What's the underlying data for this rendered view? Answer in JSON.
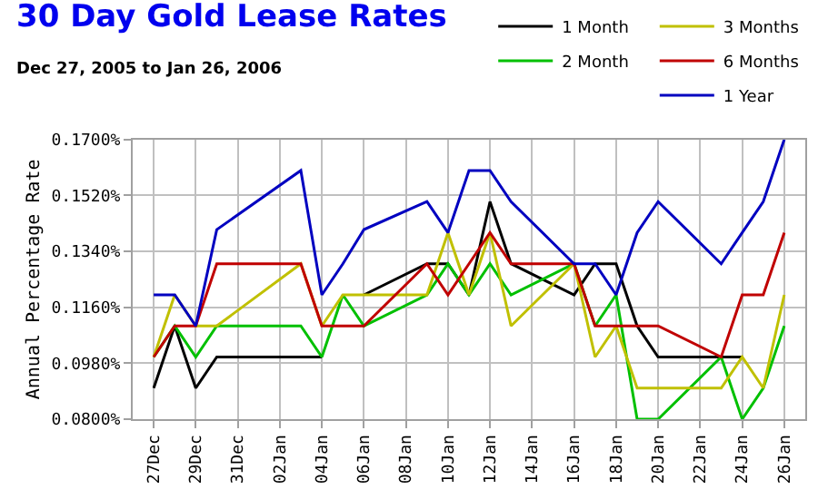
{
  "chart_data": {
    "type": "line",
    "title": "30 Day Gold Lease Rates",
    "subtitle": "Dec 27, 2005 to Jan 26, 2006",
    "ylabel": "Annual Percentage Rate",
    "x": [
      "2005-12-27",
      "2005-12-28",
      "2005-12-29",
      "2005-12-30",
      "2006-01-03",
      "2006-01-04",
      "2006-01-05",
      "2006-01-06",
      "2006-01-09",
      "2006-01-10",
      "2006-01-11",
      "2006-01-12",
      "2006-01-13",
      "2006-01-16",
      "2006-01-17",
      "2006-01-18",
      "2006-01-19",
      "2006-01-20",
      "2006-01-23",
      "2006-01-24",
      "2006-01-25",
      "2006-01-26"
    ],
    "series": [
      {
        "name": "1 Month",
        "color": "#000000",
        "values": [
          0.09,
          0.11,
          0.09,
          0.1,
          0.1,
          0.1,
          null,
          0.12,
          0.13,
          0.13,
          0.12,
          0.15,
          0.13,
          0.12,
          0.13,
          0.13,
          0.11,
          0.1,
          0.1,
          0.1,
          null,
          null
        ]
      },
      {
        "name": "2 Month",
        "color": "#00c000",
        "values": [
          0.1,
          0.11,
          0.1,
          0.11,
          0.11,
          0.1,
          0.12,
          0.11,
          0.12,
          0.13,
          0.12,
          0.13,
          0.12,
          0.13,
          0.11,
          0.12,
          0.08,
          0.08,
          0.1,
          0.08,
          0.09,
          0.11
        ]
      },
      {
        "name": "3 Months",
        "color": "#c0c000",
        "values": [
          0.1,
          0.12,
          0.11,
          0.11,
          0.13,
          0.11,
          0.12,
          0.12,
          0.12,
          0.14,
          0.12,
          0.14,
          0.11,
          0.13,
          0.1,
          0.11,
          0.09,
          0.09,
          0.09,
          0.1,
          0.09,
          0.12
        ]
      },
      {
        "name": "6 Months",
        "color": "#c00000",
        "values": [
          0.1,
          0.11,
          0.11,
          0.13,
          0.13,
          0.11,
          0.11,
          0.11,
          0.13,
          0.12,
          0.13,
          0.14,
          0.13,
          0.13,
          0.11,
          0.11,
          0.11,
          0.11,
          0.1,
          0.12,
          0.12,
          0.14
        ]
      },
      {
        "name": "1 Year",
        "color": "#0000c0",
        "values": [
          0.12,
          0.12,
          0.11,
          0.141,
          0.16,
          0.12,
          0.13,
          0.141,
          0.15,
          0.14,
          0.16,
          0.16,
          0.15,
          0.13,
          0.13,
          0.12,
          0.14,
          0.15,
          0.13,
          0.14,
          0.15,
          0.17
        ]
      }
    ],
    "xlim": [
      "2005-12-26",
      "2006-01-27"
    ],
    "xticks": [
      {
        "value": "2005-12-27",
        "label": "27Dec"
      },
      {
        "value": "2005-12-29",
        "label": "29Dec"
      },
      {
        "value": "2005-12-31",
        "label": "31Dec"
      },
      {
        "value": "2006-01-02",
        "label": "02Jan"
      },
      {
        "value": "2006-01-04",
        "label": "04Jan"
      },
      {
        "value": "2006-01-06",
        "label": "06Jan"
      },
      {
        "value": "2006-01-08",
        "label": "08Jan"
      },
      {
        "value": "2006-01-10",
        "label": "10Jan"
      },
      {
        "value": "2006-01-12",
        "label": "12Jan"
      },
      {
        "value": "2006-01-14",
        "label": "14Jan"
      },
      {
        "value": "2006-01-16",
        "label": "16Jan"
      },
      {
        "value": "2006-01-18",
        "label": "18Jan"
      },
      {
        "value": "2006-01-20",
        "label": "20Jan"
      },
      {
        "value": "2006-01-22",
        "label": "22Jan"
      },
      {
        "value": "2006-01-24",
        "label": "24Jan"
      },
      {
        "value": "2006-01-26",
        "label": "26Jan"
      }
    ],
    "ylim": [
      0.08,
      0.17
    ],
    "yticks": [
      {
        "value": 0.08,
        "label": "0.0800%"
      },
      {
        "value": 0.098,
        "label": "0.0980%"
      },
      {
        "value": 0.116,
        "label": "0.1160%"
      },
      {
        "value": 0.134,
        "label": "0.1340%"
      },
      {
        "value": 0.152,
        "label": "0.1520%"
      },
      {
        "value": 0.17,
        "label": "0.1700%"
      }
    ],
    "grid": true,
    "legend": "top right",
    "marker": "none",
    "line_style": "solid"
  }
}
